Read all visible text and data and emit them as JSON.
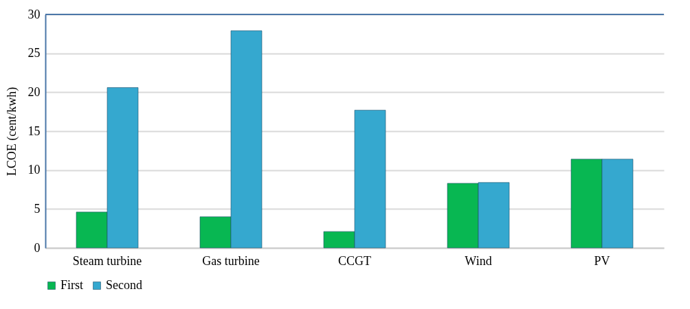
{
  "chart_data": {
    "type": "bar",
    "ylabel": "LCOE (cent/kwh)",
    "categories": [
      "Steam turbine",
      "Gas turbine",
      "CCGT",
      "Wind",
      "PV"
    ],
    "series": [
      {
        "name": "First",
        "color": "#08b752",
        "values": [
          4.6,
          4.0,
          2.1,
          8.3,
          11.4
        ]
      },
      {
        "name": "Second",
        "color": "#35a8cf",
        "values": [
          20.6,
          27.9,
          17.7,
          8.4,
          11.4
        ]
      }
    ],
    "ylim": [
      0,
      30
    ],
    "yticks": [
      0,
      5,
      10,
      15,
      20,
      25,
      30
    ],
    "grid": "y",
    "legend": "bottom"
  }
}
